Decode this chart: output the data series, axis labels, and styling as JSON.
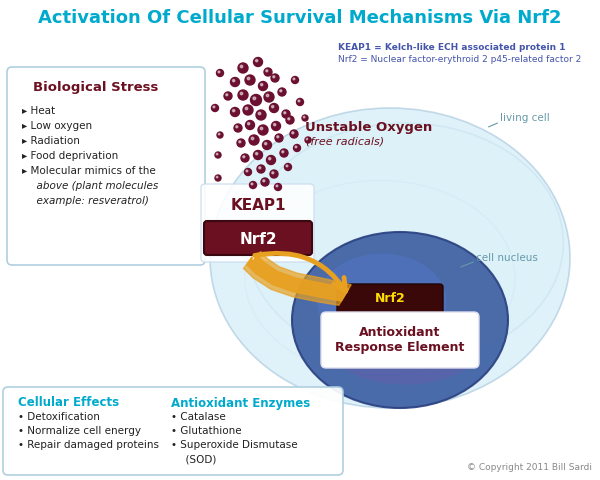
{
  "title": "Activation Of Cellular Survival Mechanisms Via Nrf2",
  "title_color": "#00AACC",
  "title_fontsize": 13,
  "background_color": "#FFFFFF",
  "keap1_label": "KEAP1",
  "keap1_def1": "KEAP1 = Kelch-like ECH associated protein 1",
  "keap1_def2": "Nrf2 = Nuclear factor-erythroid 2 p45-related factor 2",
  "nrf2_label": "Nrf2",
  "bio_stress_title": "Biological Stress",
  "bio_stress_items": [
    "Heat",
    "Low oxygen",
    "Radiation",
    "Food deprivation",
    "Molecular mimics of the\n  above (plant molecules\n  example: resveratrol)"
  ],
  "unstable_oxygen_title": "Unstable Oxygen",
  "unstable_oxygen_sub": "(free radicals)",
  "living_cell_label": "living cell",
  "cell_nucleus_label": "cell nucleus",
  "are_title": "Antioxidant\nResponse Element",
  "cellular_effects_title": "Cellular Effects",
  "cellular_effects_items": [
    "Detoxification",
    "Normalize cell energy",
    "Repair damaged proteins"
  ],
  "antioxidant_enzymes_title": "Antioxidant Enzymes",
  "antioxidant_enzymes_items": [
    "Catalase",
    "Glutathione",
    "Superoxide Dismutase\n  (SOD)"
  ],
  "copyright": "© Copyright 2011 Bill Sardi",
  "maroon": "#6B1020",
  "dark_maroon": "#3A0810",
  "teal": "#00AACC",
  "purple_blue": "#4455AA",
  "orange_arrow": "#E8A020",
  "dot_color": "#6B1030",
  "cell_fill": "#C5E5F0",
  "cell_edge": "#A0C8E0",
  "nuc_fill": "#4466AA",
  "nuc_edge": "#334488"
}
